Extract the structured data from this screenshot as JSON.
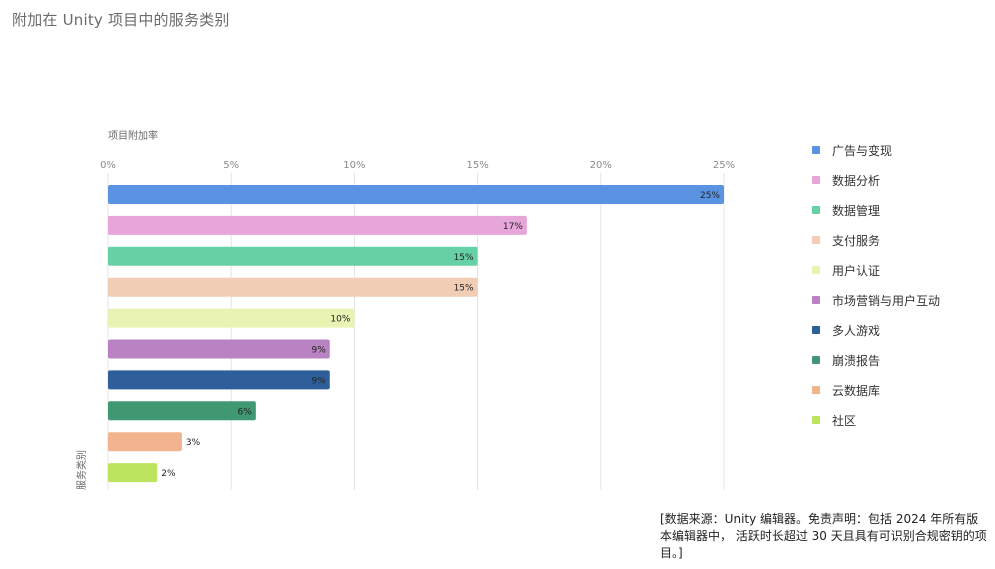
{
  "page": {
    "title": "附加在 Unity 项目中的服务类别",
    "footnote": "[数据来源：Unity 编辑器。免责声明：包括 2024 年所有版本编辑器中， 活跃时长超过 30 天且具有可识别合规密钥的项目。]"
  },
  "chart_data": {
    "type": "bar",
    "orientation": "horizontal",
    "xlabel": "项目附加率",
    "ylabel": "服务类别",
    "xlim": [
      0,
      25
    ],
    "x_ticks": [
      "0%",
      "5%",
      "10%",
      "15%",
      "20%",
      "25%"
    ],
    "grid": true,
    "legend_position": "right",
    "categories": [
      "广告与变现",
      "数据分析",
      "数据管理",
      "支付服务",
      "用户认证",
      "市场营销与用户互动",
      "多人游戏",
      "崩溃报告",
      "云数据库",
      "社区"
    ],
    "values": [
      25,
      17,
      15,
      15,
      10,
      9,
      9,
      6,
      3,
      2
    ],
    "data_labels": [
      "25%",
      "17%",
      "15%",
      "15%",
      "10%",
      "9%",
      "9%",
      "6%",
      "3%",
      "2%"
    ],
    "colors": [
      "#5b93e3",
      "#e6a6d9",
      "#66d1a5",
      "#f2cdb6",
      "#e9f3b3",
      "#b983c3",
      "#2f5f9b",
      "#3f9872",
      "#f2b48e",
      "#bde45f"
    ]
  }
}
